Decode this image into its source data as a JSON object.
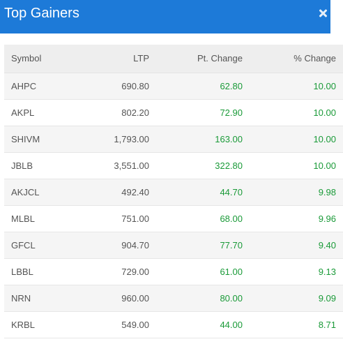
{
  "header": {
    "title": "Top Gainers",
    "close_icon": "close-icon"
  },
  "table": {
    "columns": [
      "Symbol",
      "LTP",
      "Pt. Change",
      "% Change"
    ],
    "rows": [
      {
        "symbol": "AHPC",
        "ltp": "690.80",
        "pt_change": "62.80",
        "pct_change": "10.00"
      },
      {
        "symbol": "AKPL",
        "ltp": "802.20",
        "pt_change": "72.90",
        "pct_change": "10.00"
      },
      {
        "symbol": "SHIVM",
        "ltp": "1,793.00",
        "pt_change": "163.00",
        "pct_change": "10.00"
      },
      {
        "symbol": "JBLB",
        "ltp": "3,551.00",
        "pt_change": "322.80",
        "pct_change": "10.00"
      },
      {
        "symbol": "AKJCL",
        "ltp": "492.40",
        "pt_change": "44.70",
        "pct_change": "9.98"
      },
      {
        "symbol": "MLBL",
        "ltp": "751.00",
        "pt_change": "68.00",
        "pct_change": "9.96"
      },
      {
        "symbol": "GFCL",
        "ltp": "904.70",
        "pt_change": "77.70",
        "pct_change": "9.40"
      },
      {
        "symbol": "LBBL",
        "ltp": "729.00",
        "pt_change": "61.00",
        "pct_change": "9.13"
      },
      {
        "symbol": "NRN",
        "ltp": "960.00",
        "pt_change": "80.00",
        "pct_change": "9.09"
      },
      {
        "symbol": "KRBL",
        "ltp": "549.00",
        "pt_change": "44.00",
        "pct_change": "8.71"
      }
    ]
  },
  "colors": {
    "header_bg": "#1d7ad8",
    "gain_green": "#1a9a38"
  }
}
